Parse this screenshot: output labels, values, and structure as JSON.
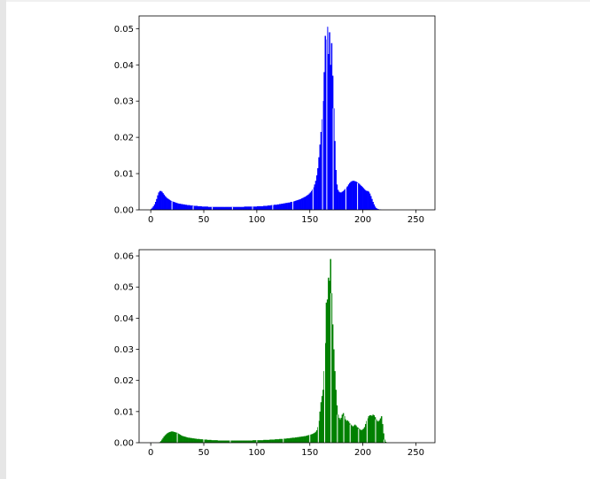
{
  "chart_data": [
    {
      "type": "bar",
      "title": "",
      "xlabel": "",
      "ylabel": "",
      "color": "#0000ff",
      "xlim": [
        -11,
        268
      ],
      "ylim": [
        0,
        0.0535
      ],
      "xticks": [
        0,
        50,
        100,
        150,
        200,
        250
      ],
      "yticks": [
        0.0,
        0.01,
        0.02,
        0.03,
        0.04,
        0.05
      ],
      "ytick_labels": [
        "0.00",
        "0.01",
        "0.02",
        "0.03",
        "0.04",
        "0.05"
      ],
      "bins": {
        "start": 0,
        "width": 1,
        "values": [
          0.0003,
          0.0006,
          0.001,
          0.0015,
          0.0022,
          0.003,
          0.004,
          0.0048,
          0.0052,
          0.0052,
          0.005,
          0.0046,
          0.0042,
          0.0038,
          0.0035,
          0.0032,
          0.003,
          0.0028,
          0.0026,
          0.0024,
          0.0023,
          0.0022,
          0.0021,
          0.002,
          0.0019,
          0.0018,
          0.0017,
          0.0017,
          0.0016,
          0.0016,
          0.0015,
          0.0015,
          0.0014,
          0.0014,
          0.0013,
          0.0013,
          0.0013,
          0.0012,
          0.0012,
          0.0012,
          0.0011,
          0.0011,
          0.0011,
          0.0011,
          0.001,
          0.001,
          0.001,
          0.001,
          0.0009,
          0.0009,
          0.0009,
          0.0009,
          0.0009,
          0.0009,
          0.0008,
          0.0008,
          0.0008,
          0.0008,
          0.0008,
          0.0008,
          0.0008,
          0.0008,
          0.0008,
          0.0008,
          0.0008,
          0.0008,
          0.0008,
          0.0008,
          0.0008,
          0.0008,
          0.0008,
          0.0008,
          0.0008,
          0.0008,
          0.0008,
          0.0008,
          0.0008,
          0.0008,
          0.0008,
          0.0008,
          0.0008,
          0.0008,
          0.0008,
          0.0008,
          0.0008,
          0.0008,
          0.0008,
          0.0008,
          0.0009,
          0.0009,
          0.0009,
          0.0009,
          0.0009,
          0.0009,
          0.0009,
          0.0009,
          0.0009,
          0.0009,
          0.0009,
          0.0009,
          0.001,
          0.001,
          0.001,
          0.001,
          0.001,
          0.001,
          0.0011,
          0.0011,
          0.0011,
          0.0011,
          0.0012,
          0.0012,
          0.0012,
          0.0013,
          0.0013,
          0.0013,
          0.0014,
          0.0014,
          0.0014,
          0.0015,
          0.0015,
          0.0016,
          0.0016,
          0.0017,
          0.0017,
          0.0018,
          0.0018,
          0.0019,
          0.0019,
          0.002,
          0.002,
          0.0021,
          0.0022,
          0.0022,
          0.0023,
          0.0024,
          0.0025,
          0.0026,
          0.0027,
          0.0028,
          0.0029,
          0.003,
          0.0032,
          0.0033,
          0.0035,
          0.0036,
          0.0038,
          0.004,
          0.0042,
          0.0045,
          0.0048,
          0.0052,
          0.0056,
          0.0062,
          0.007,
          0.008,
          0.0095,
          0.0115,
          0.0145,
          0.018,
          0.0215,
          0.025,
          0.03,
          0.038,
          0.048,
          0.047,
          0.0505,
          0.043,
          0.049,
          0.04,
          0.046,
          0.037,
          0.028,
          0.019,
          0.011,
          0.007,
          0.0055,
          0.005,
          0.0048,
          0.0048,
          0.005,
          0.0052,
          0.0055,
          0.0058,
          0.0062,
          0.0065,
          0.007,
          0.0074,
          0.0077,
          0.0079,
          0.008,
          0.008,
          0.0079,
          0.0078,
          0.0076,
          0.0074,
          0.0072,
          0.0069,
          0.0066,
          0.0063,
          0.006,
          0.0057,
          0.0054,
          0.0052,
          0.0052,
          0.005,
          0.0045,
          0.0038,
          0.003,
          0.0022,
          0.0015,
          0.0009,
          0.0005,
          0.0003,
          0.0002,
          0.0001,
          0.0001,
          0,
          0,
          0,
          0,
          0,
          0,
          0,
          0,
          0,
          0,
          0,
          0,
          0,
          0,
          0,
          0,
          0,
          0,
          0,
          0,
          0,
          0,
          0,
          0,
          0,
          0,
          0,
          0,
          0,
          0
        ],
        "gaps": [
          20,
          40,
          58,
          77,
          96,
          115,
          134,
          153,
          162,
          166,
          172,
          184,
          195
        ]
      }
    },
    {
      "type": "bar",
      "title": "",
      "xlabel": "",
      "ylabel": "",
      "color": "#008000",
      "xlim": [
        -11,
        268
      ],
      "ylim": [
        0,
        0.062
      ],
      "xticks": [
        0,
        50,
        100,
        150,
        200,
        250
      ],
      "yticks": [
        0.0,
        0.01,
        0.02,
        0.03,
        0.04,
        0.05,
        0.06
      ],
      "ytick_labels": [
        "0.00",
        "0.01",
        "0.02",
        "0.03",
        "0.04",
        "0.05",
        "0.06"
      ],
      "bins": {
        "start": 0,
        "width": 1,
        "values": [
          0,
          0,
          0,
          0,
          0,
          0,
          0,
          0,
          0.0002,
          0.0005,
          0.001,
          0.0015,
          0.002,
          0.0024,
          0.0027,
          0.003,
          0.0032,
          0.0034,
          0.0035,
          0.0036,
          0.0036,
          0.0035,
          0.0034,
          0.0033,
          0.0032,
          0.003,
          0.0028,
          0.0026,
          0.0024,
          0.0022,
          0.0021,
          0.002,
          0.0019,
          0.0018,
          0.0017,
          0.0016,
          0.0016,
          0.0015,
          0.0015,
          0.0014,
          0.0014,
          0.0013,
          0.0013,
          0.0012,
          0.0012,
          0.0012,
          0.0011,
          0.0011,
          0.0011,
          0.001,
          0.001,
          0.001,
          0.001,
          0.0009,
          0.0009,
          0.0009,
          0.0009,
          0.0008,
          0.0008,
          0.0008,
          0.0008,
          0.0008,
          0.0008,
          0.0007,
          0.0007,
          0.0007,
          0.0007,
          0.0007,
          0.0007,
          0.0007,
          0.0007,
          0.0007,
          0.0007,
          0.0007,
          0.0007,
          0.0007,
          0.0007,
          0.0007,
          0.0007,
          0.0007,
          0.0007,
          0.0007,
          0.0007,
          0.0007,
          0.0007,
          0.0007,
          0.0007,
          0.0007,
          0.0007,
          0.0007,
          0.0007,
          0.0007,
          0.0007,
          0.0007,
          0.0007,
          0.0007,
          0.0008,
          0.0008,
          0.0008,
          0.0008,
          0.0008,
          0.0008,
          0.0008,
          0.0008,
          0.0008,
          0.0008,
          0.0009,
          0.0009,
          0.0009,
          0.0009,
          0.0009,
          0.0009,
          0.001,
          0.001,
          0.001,
          0.001,
          0.001,
          0.0011,
          0.0011,
          0.0011,
          0.0011,
          0.0012,
          0.0012,
          0.0012,
          0.0012,
          0.0013,
          0.0013,
          0.0013,
          0.0014,
          0.0014,
          0.0014,
          0.0015,
          0.0015,
          0.0016,
          0.0016,
          0.0016,
          0.0017,
          0.0017,
          0.0018,
          0.0018,
          0.0019,
          0.0019,
          0.002,
          0.002,
          0.0021,
          0.0021,
          0.0022,
          0.0023,
          0.0024,
          0.0025,
          0.0026,
          0.0027,
          0.0028,
          0.003,
          0.0032,
          0.0035,
          0.004,
          0.005,
          0.007,
          0.01,
          0.013,
          0.015,
          0.017,
          0.023,
          0.032,
          0.045,
          0.046,
          0.053,
          0.052,
          0.059,
          0.048,
          0.038,
          0.03,
          0.023,
          0.017,
          0.012,
          0.009,
          0.008,
          0.0075,
          0.008,
          0.009,
          0.0095,
          0.0085,
          0.0075,
          0.007,
          0.0072,
          0.0068,
          0.0062,
          0.0058,
          0.0055,
          0.0052,
          0.0055,
          0.0058,
          0.0055,
          0.005,
          0.0048,
          0.0045,
          0.0042,
          0.004,
          0.0042,
          0.0045,
          0.005,
          0.006,
          0.007,
          0.0078,
          0.0085,
          0.0088,
          0.0088,
          0.0086,
          0.009,
          0.0088,
          0.0082,
          0.0075,
          0.007,
          0.0068,
          0.0072,
          0.0078,
          0.0085,
          0.006,
          0.003,
          0.001,
          0.0003,
          0,
          0,
          0,
          0,
          0,
          0,
          0,
          0,
          0,
          0,
          0,
          0,
          0,
          0,
          0,
          0,
          0,
          0,
          0,
          0,
          0,
          0,
          0,
          0
        ],
        "gaps": [
          25,
          50,
          75,
          100,
          125,
          150,
          158,
          164,
          170,
          176,
          182,
          188,
          196,
          204,
          212,
          220
        ]
      }
    }
  ]
}
